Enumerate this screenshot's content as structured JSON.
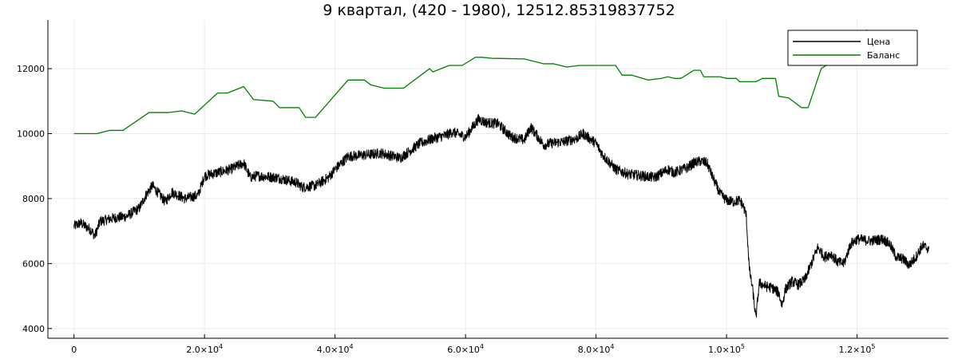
{
  "chart_data": {
    "type": "line",
    "title": "9 квартал, (420 - 1980), 12512.85319837752",
    "xlabel": "",
    "ylabel": "",
    "xlim": [
      -4000,
      134000
    ],
    "ylim": [
      3700,
      13500
    ],
    "grid": true,
    "legend_position": "top-right",
    "x_ticks": [
      0,
      20000,
      40000,
      60000,
      80000,
      100000,
      120000
    ],
    "x_tick_labels": [
      {
        "mantissa": "0",
        "exponent": ""
      },
      {
        "mantissa": "2.0×10",
        "exponent": "4"
      },
      {
        "mantissa": "4.0×10",
        "exponent": "4"
      },
      {
        "mantissa": "6.0×10",
        "exponent": "4"
      },
      {
        "mantissa": "8.0×10",
        "exponent": "4"
      },
      {
        "mantissa": "1.0×10",
        "exponent": "5"
      },
      {
        "mantissa": "1.2×10",
        "exponent": "5"
      }
    ],
    "y_ticks": [
      4000,
      6000,
      8000,
      10000,
      12000
    ],
    "y_tick_labels": [
      "4000",
      "6000",
      "8000",
      "10000",
      "12000"
    ],
    "series": [
      {
        "name": "Цена",
        "color": "#000000",
        "noise": 160,
        "x": [
          0,
          1000,
          2500,
          3200,
          4000,
          6000,
          8000,
          10000,
          11000,
          12000,
          14000,
          15000,
          17000,
          19000,
          20000,
          22000,
          24000,
          26000,
          27000,
          28000,
          31000,
          34000,
          35000,
          37000,
          39000,
          40000,
          42000,
          45000,
          47000,
          50000,
          51000,
          53000,
          55000,
          57000,
          58000,
          60000,
          62000,
          63000,
          65000,
          67000,
          69000,
          70000,
          72000,
          73000,
          75000,
          77000,
          78000,
          80000,
          81000,
          83000,
          85000,
          87000,
          89000,
          91000,
          92000,
          94000,
          95000,
          96000,
          97000,
          98000,
          99000,
          100000,
          101000,
          102000,
          102500,
          103000,
          103500,
          104000,
          104500,
          105000,
          106000,
          107000,
          108000,
          108500,
          109000,
          110000,
          111000,
          112000,
          113000,
          114000,
          115000,
          116000,
          117000,
          118000,
          119000,
          120000,
          122000,
          124000,
          125000,
          126000,
          127000,
          128000,
          129000,
          130000,
          131000
        ],
        "y": [
          7150,
          7250,
          7050,
          6850,
          7300,
          7400,
          7450,
          7700,
          8100,
          8400,
          7900,
          8200,
          8000,
          8100,
          8700,
          8800,
          8900,
          9100,
          8650,
          8700,
          8650,
          8500,
          8350,
          8400,
          8650,
          8900,
          9300,
          9350,
          9400,
          9250,
          9400,
          9700,
          9850,
          9950,
          10050,
          9900,
          10450,
          10350,
          10300,
          9900,
          9800,
          10200,
          9650,
          9700,
          9750,
          9850,
          10000,
          9700,
          9350,
          8900,
          8750,
          8700,
          8650,
          8900,
          8800,
          8950,
          9100,
          9150,
          9100,
          8600,
          8150,
          7950,
          7900,
          7950,
          7800,
          7500,
          5800,
          5200,
          4300,
          5400,
          5300,
          5250,
          5100,
          4700,
          5200,
          5450,
          5350,
          5500,
          6000,
          6500,
          6200,
          6300,
          6050,
          6000,
          6600,
          6750,
          6700,
          6750,
          6600,
          6200,
          6150,
          5950,
          6200,
          6550,
          6450
        ]
      },
      {
        "name": "Баланс",
        "color": "#008000",
        "noise": 0,
        "x": [
          0,
          3500,
          5500,
          7500,
          11500,
          14500,
          16500,
          18500,
          22000,
          23500,
          26000,
          27500,
          30500,
          31500,
          34500,
          35500,
          37000,
          42000,
          44500,
          45500,
          47500,
          50500,
          54500,
          55000,
          57500,
          59500,
          61500,
          62500,
          64000,
          69000,
          72000,
          73500,
          75500,
          77500,
          83000,
          84000,
          85500,
          88000,
          90000,
          91000,
          92000,
          93000,
          95000,
          96000,
          96500,
          99000,
          100000,
          101500,
          102000,
          104500,
          105500,
          107500,
          108000,
          109500,
          111500,
          112500,
          114500,
          116000,
          118000,
          120000,
          121500
        ],
        "y": [
          10000,
          10000,
          10100,
          10100,
          10650,
          10650,
          10700,
          10600,
          11250,
          11250,
          11450,
          11050,
          11000,
          10800,
          10800,
          10500,
          10500,
          11650,
          11650,
          11500,
          11400,
          11400,
          12000,
          11900,
          12100,
          12100,
          12350,
          12350,
          12320,
          12300,
          12150,
          12150,
          12050,
          12100,
          12100,
          11800,
          11800,
          11650,
          11700,
          11750,
          11700,
          11700,
          11950,
          11950,
          11750,
          11750,
          11700,
          11700,
          11600,
          11600,
          11700,
          11700,
          11150,
          11100,
          10800,
          10800,
          12000,
          12200,
          12500,
          12850,
          13200
        ]
      }
    ]
  }
}
